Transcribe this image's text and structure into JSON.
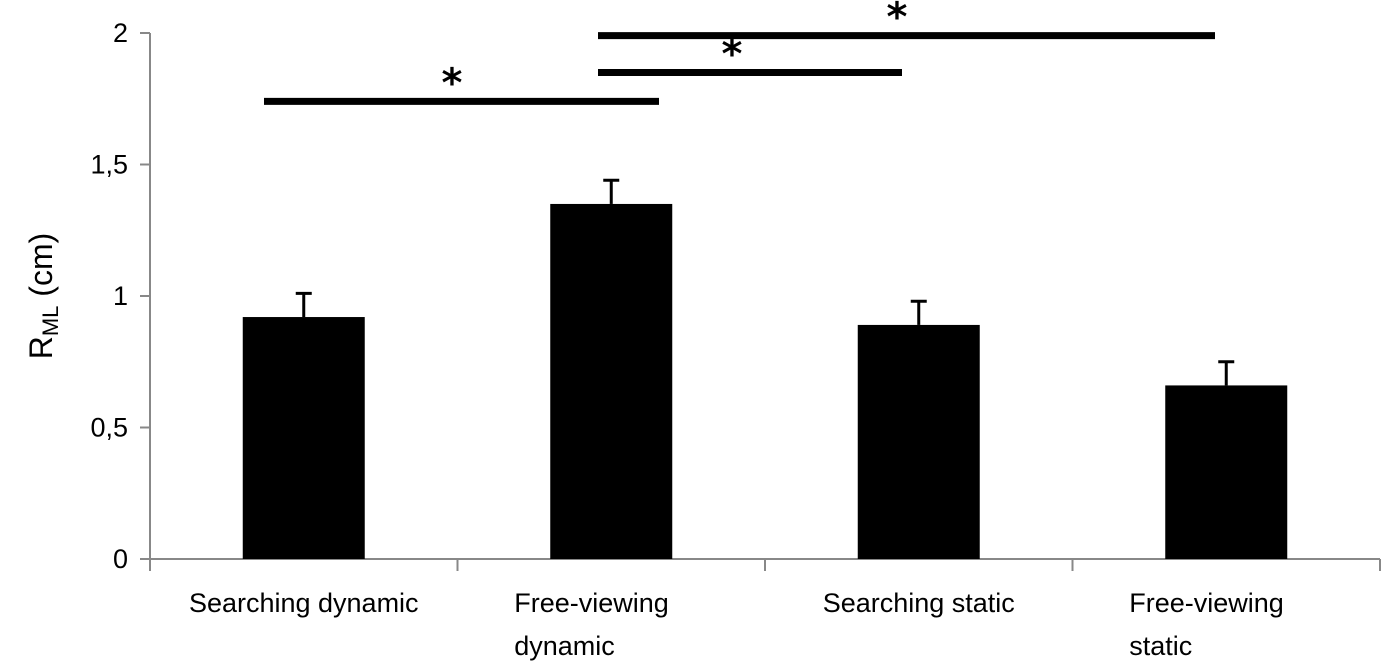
{
  "chart_data": {
    "type": "bar",
    "categories": [
      [
        "Searching dynamic"
      ],
      [
        "Free-viewing",
        "dynamic"
      ],
      [
        "Searching static"
      ],
      [
        "Free-viewing",
        "static"
      ]
    ],
    "values": [
      0.92,
      1.35,
      0.89,
      0.66
    ],
    "error_plus": [
      0.09,
      0.09,
      0.09,
      0.09
    ],
    "ylabel_main": "R",
    "ylabel_sub": "ML",
    "ylabel_unit": " (cm)",
    "ylim": [
      0,
      2
    ],
    "yticks": [
      0,
      0.5,
      1,
      1.5,
      2
    ],
    "ytick_labels": [
      "0",
      "0,5",
      "1",
      "1,5",
      "2"
    ],
    "grid": false,
    "bar_color": "#000000",
    "significance": [
      {
        "from": 0,
        "to": 1,
        "level": 1.74,
        "label": "*"
      },
      {
        "from": 1,
        "to": 2,
        "level": 1.85,
        "label": "*"
      },
      {
        "from": 1,
        "to": 3,
        "level": 1.99,
        "label": "*"
      }
    ]
  }
}
